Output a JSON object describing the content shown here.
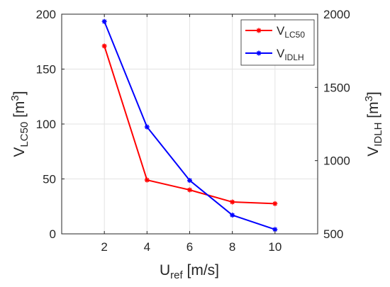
{
  "chart_data": {
    "type": "line",
    "x": [
      2,
      4,
      6,
      8,
      10
    ],
    "xlim": [
      0,
      12
    ],
    "xticks": [
      "2",
      "4",
      "6",
      "8",
      "10"
    ],
    "xlabel": {
      "main": "U",
      "sub": "ref",
      "rest": " [m/s]"
    },
    "grid": true,
    "legend_position": "top-right",
    "axes": {
      "left": {
        "label": {
          "main": "V",
          "sub": "LC50",
          "rest": " [m",
          "sup": "3",
          "close": "]"
        },
        "ylim": [
          0,
          200
        ],
        "ticks": [
          "0",
          "50",
          "100",
          "150",
          "200"
        ]
      },
      "right": {
        "label": {
          "main": "V",
          "sub": "IDLH",
          "rest": " [m",
          "sup": "3",
          "close": "]"
        },
        "ylim": [
          500,
          2000
        ],
        "ticks": [
          "500",
          "1000",
          "1500",
          "2000"
        ]
      }
    },
    "series": [
      {
        "name": "LC50",
        "legend_main": "V",
        "legend_sub": "LC50",
        "axis": "left",
        "color": "#ff0000",
        "values": [
          171,
          49,
          40,
          29,
          27.5
        ]
      },
      {
        "name": "IDLH",
        "legend_main": "V",
        "legend_sub": "IDLH",
        "axis": "right",
        "color": "#0000ff",
        "values": [
          1950,
          1230,
          865,
          628,
          530
        ]
      }
    ]
  }
}
